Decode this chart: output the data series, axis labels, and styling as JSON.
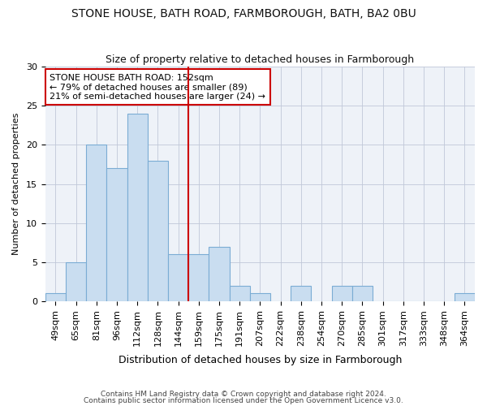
{
  "title1": "STONE HOUSE, BATH ROAD, FARMBOROUGH, BATH, BA2 0BU",
  "title2": "Size of property relative to detached houses in Farmborough",
  "xlabel": "Distribution of detached houses by size in Farmborough",
  "ylabel": "Number of detached properties",
  "categories": [
    "49sqm",
    "65sqm",
    "81sqm",
    "96sqm",
    "112sqm",
    "128sqm",
    "144sqm",
    "159sqm",
    "175sqm",
    "191sqm",
    "207sqm",
    "222sqm",
    "238sqm",
    "254sqm",
    "270sqm",
    "285sqm",
    "301sqm",
    "317sqm",
    "333sqm",
    "348sqm",
    "364sqm"
  ],
  "values": [
    1,
    5,
    20,
    17,
    24,
    18,
    6,
    6,
    7,
    2,
    1,
    0,
    2,
    0,
    2,
    2,
    0,
    0,
    0,
    0,
    1
  ],
  "bar_color": "#c9ddf0",
  "bar_edge_color": "#7bacd4",
  "vline_color": "#cc0000",
  "vline_position": 6.5,
  "annotation_text": "STONE HOUSE BATH ROAD: 152sqm\n← 79% of detached houses are smaller (89)\n21% of semi-detached houses are larger (24) →",
  "annotation_box_facecolor": "#ffffff",
  "annotation_box_edgecolor": "#cc0000",
  "ylim": [
    0,
    30
  ],
  "yticks": [
    0,
    5,
    10,
    15,
    20,
    25,
    30
  ],
  "plot_bg_color": "#eef2f8",
  "fig_bg_color": "#ffffff",
  "grid_color": "#c0c8d8",
  "footer1": "Contains HM Land Registry data © Crown copyright and database right 2024.",
  "footer2": "Contains public sector information licensed under the Open Government Licence v3.0.",
  "title1_fontsize": 10,
  "title2_fontsize": 9,
  "xlabel_fontsize": 9,
  "ylabel_fontsize": 8,
  "tick_fontsize": 8,
  "annotation_fontsize": 8
}
